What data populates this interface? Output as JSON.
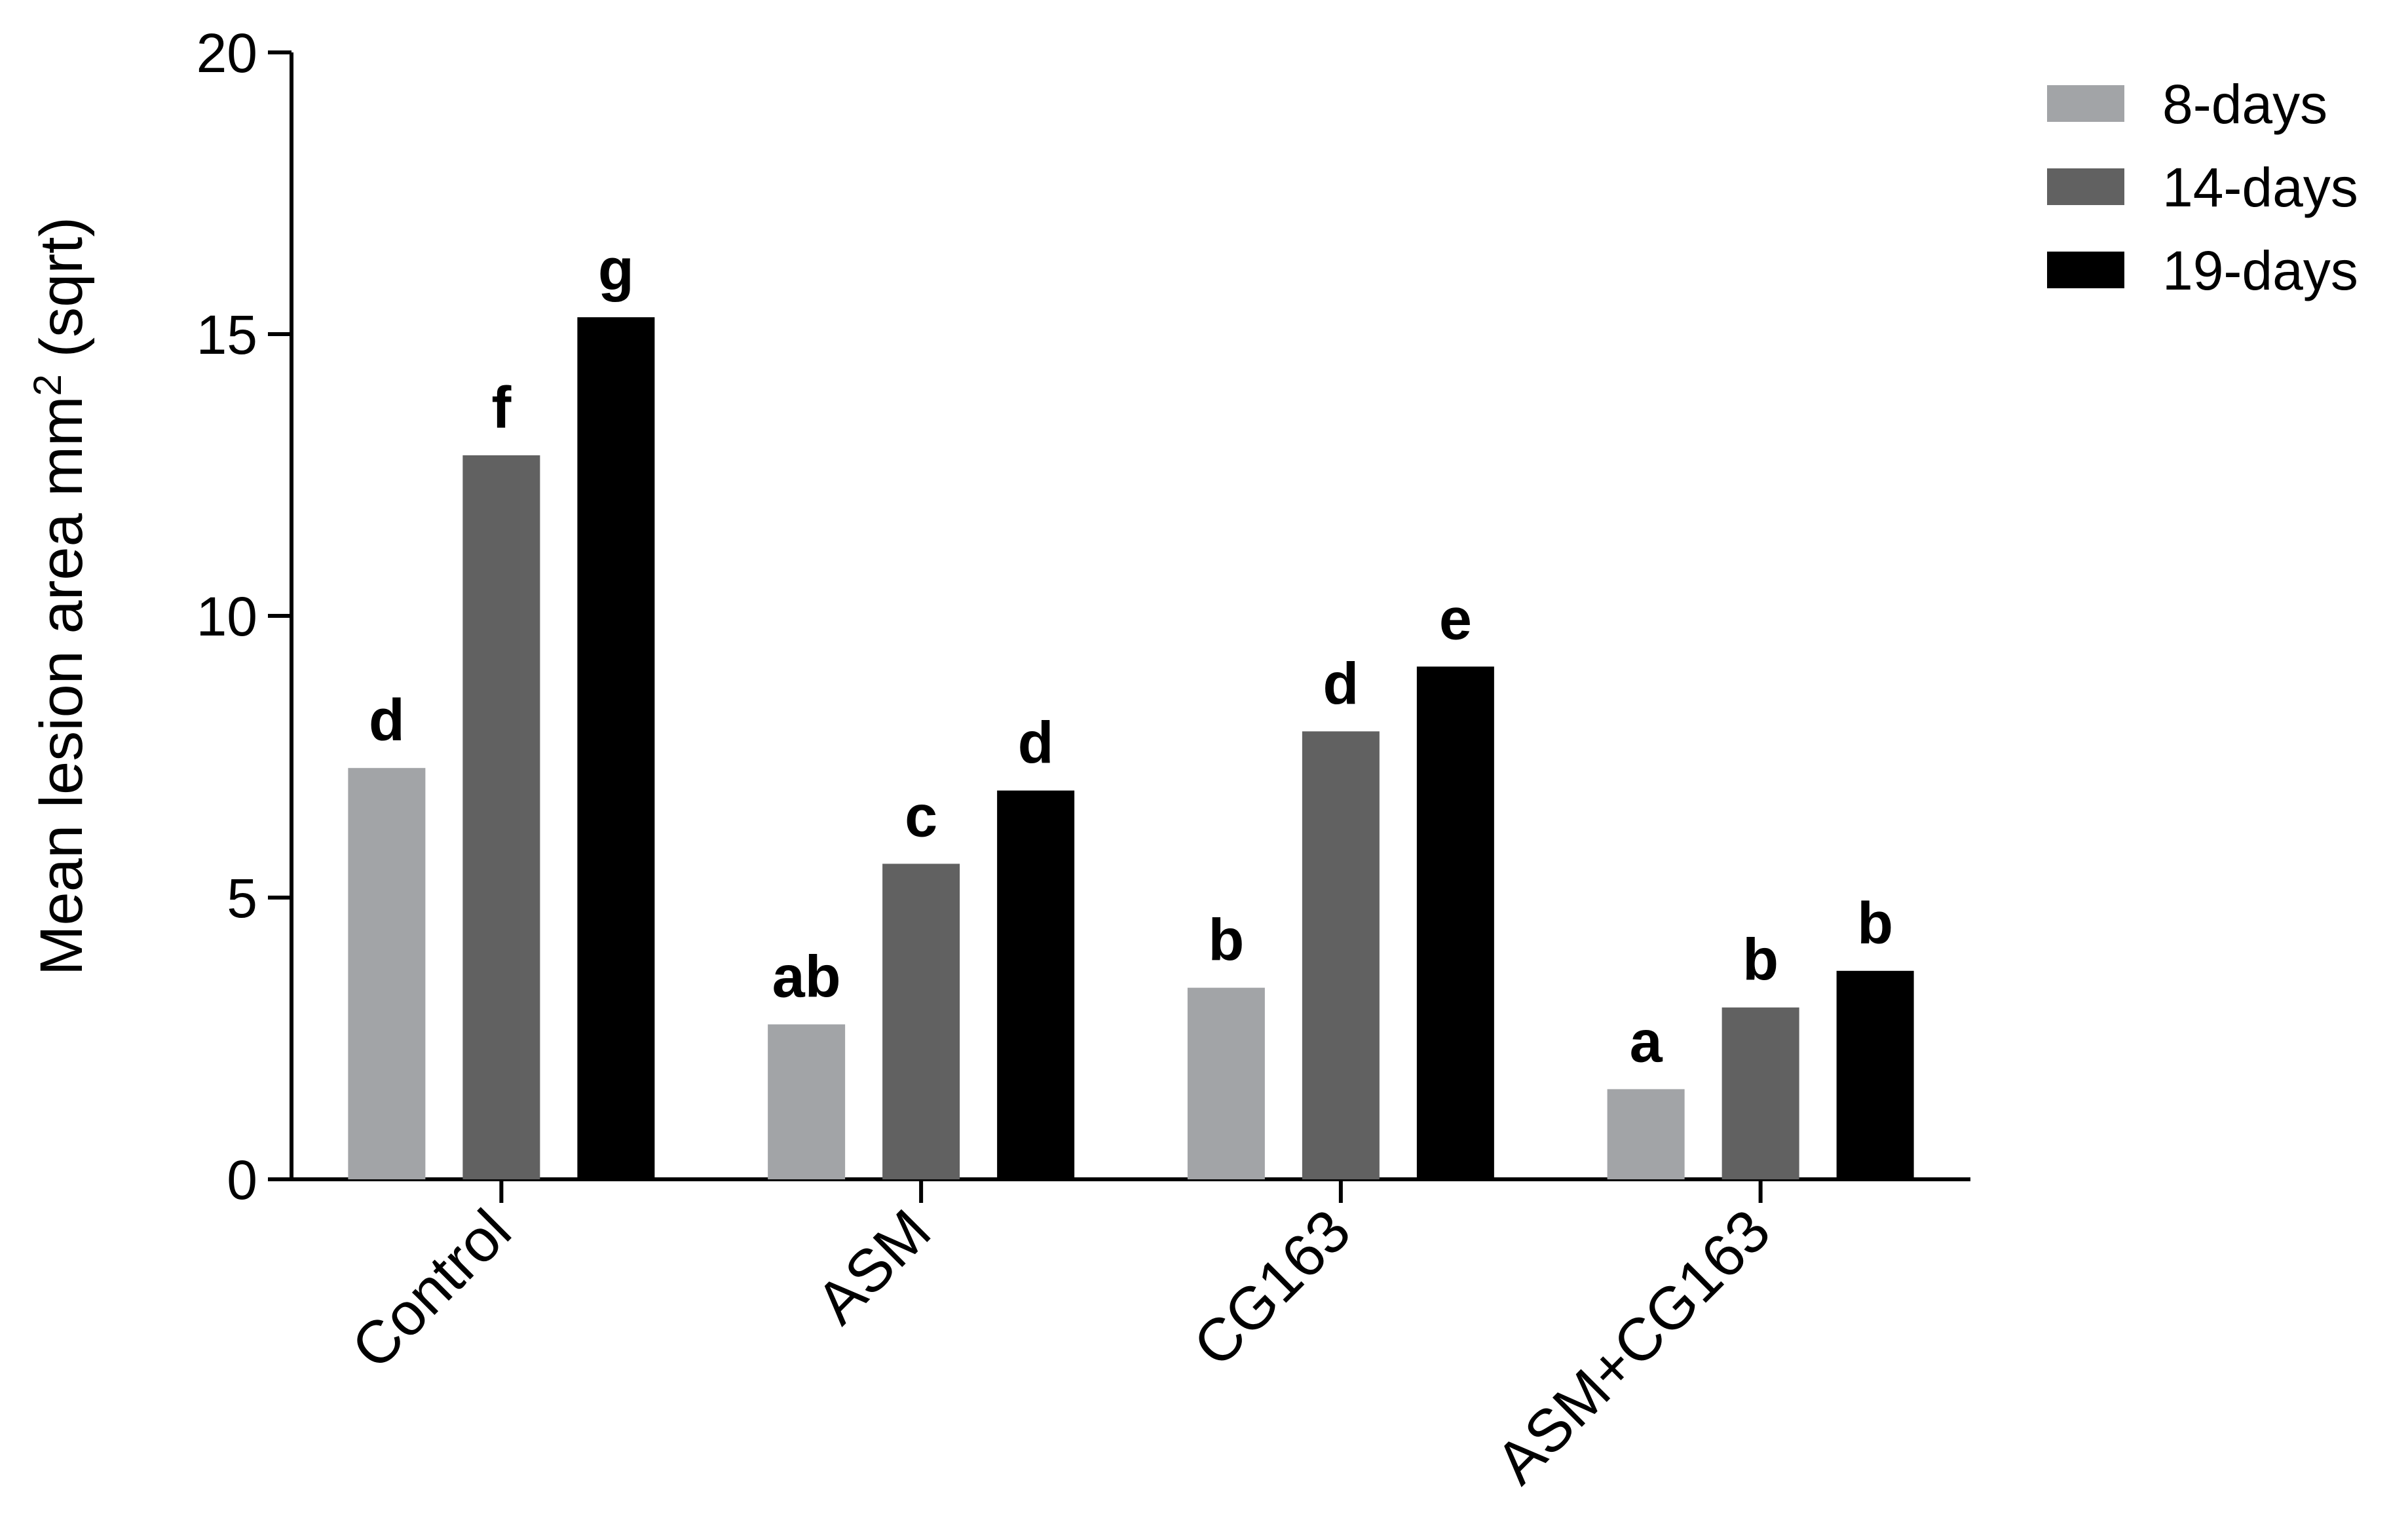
{
  "chart_data": {
    "type": "bar",
    "categories": [
      "Control",
      "ASM",
      "CG163",
      "ASM+CG163"
    ],
    "series": [
      {
        "name": "8-days",
        "color": "#a2a4a7",
        "values": [
          7.3,
          2.75,
          3.4,
          1.6
        ],
        "letters": [
          "d",
          "ab",
          "b",
          "a"
        ]
      },
      {
        "name": "14-days",
        "color": "#616161",
        "values": [
          12.85,
          5.6,
          7.95,
          3.05
        ],
        "letters": [
          "f",
          "c",
          "d",
          "b"
        ]
      },
      {
        "name": "19-days",
        "color": "#000000",
        "values": [
          15.3,
          6.9,
          9.1,
          3.7
        ],
        "letters": [
          "g",
          "d",
          "e",
          "b"
        ]
      }
    ],
    "xlabel": "",
    "ylabel": "Mean lesion area mm",
    "ylabel_superscript": "2",
    "ylabel_suffix": " (sqrt)",
    "ylim": [
      0,
      20
    ],
    "yticks": [
      0,
      5,
      10,
      15,
      20
    ],
    "ytick_labels": [
      "0",
      "5",
      "10",
      "15",
      "20"
    ],
    "grid": false,
    "legend_position": "top-right"
  }
}
